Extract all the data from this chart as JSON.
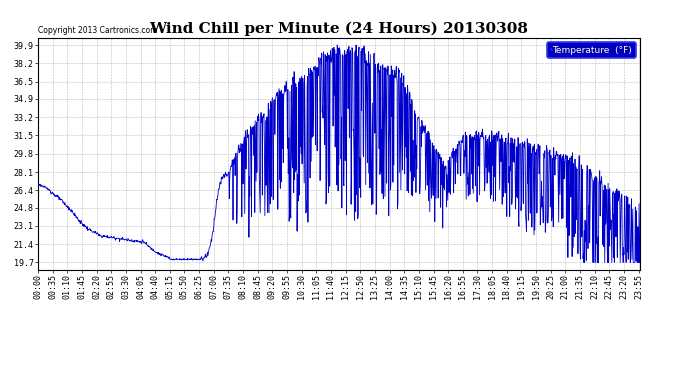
{
  "title": "Wind Chill per Minute (24 Hours) 20130308",
  "copyright_text": "Copyright 2013 Cartronics.com",
  "legend_label": "Temperature  (°F)",
  "line_color": "#0000cc",
  "legend_bg_color": "#0000bb",
  "legend_text_color": "#ffffff",
  "bg_color": "#ffffff",
  "plot_bg_color": "#ffffff",
  "grid_color": "#bbbbbb",
  "yticks": [
    19.7,
    21.4,
    23.1,
    24.8,
    26.4,
    28.1,
    29.8,
    31.5,
    33.2,
    34.9,
    36.5,
    38.2,
    39.9
  ],
  "ylim": [
    19.0,
    40.6
  ],
  "title_fontsize": 11,
  "tick_fontsize": 6,
  "copyright_fontsize": 6.5
}
